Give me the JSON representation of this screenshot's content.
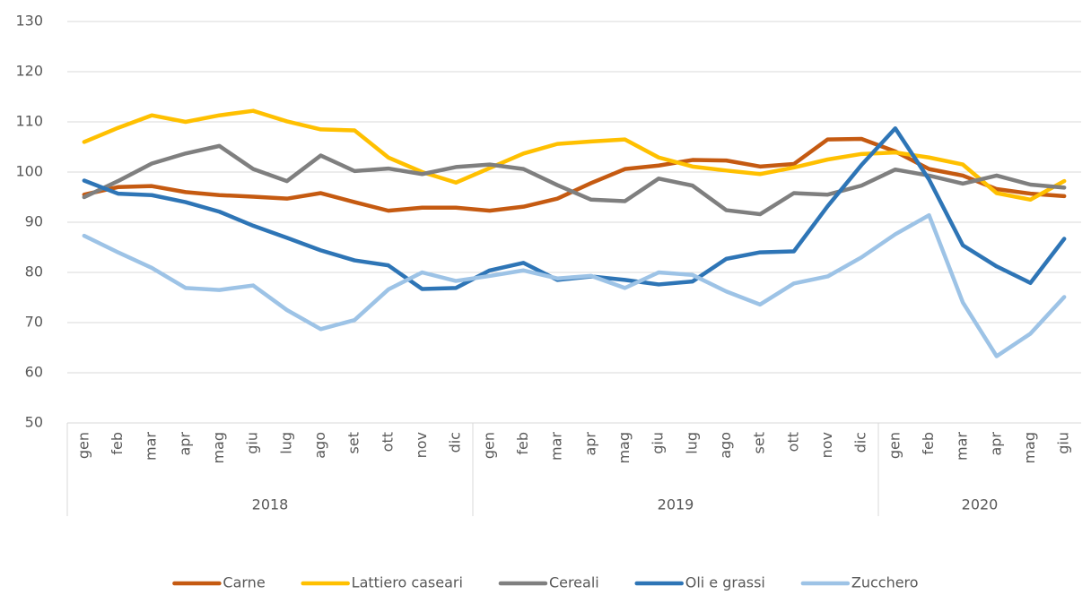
{
  "chart_data": {
    "type": "line",
    "categories": [
      "gen",
      "feb",
      "mar",
      "apr",
      "mag",
      "giu",
      "lug",
      "ago",
      "set",
      "ott",
      "nov",
      "dic",
      "gen",
      "feb",
      "mar",
      "apr",
      "mag",
      "giu",
      "lug",
      "ago",
      "set",
      "ott",
      "nov",
      "dic",
      "gen",
      "feb",
      "mar",
      "apr",
      "mag",
      "giu"
    ],
    "groups": [
      "2018",
      "2019",
      "2020"
    ],
    "group_sizes": [
      12,
      12,
      6
    ],
    "ylim": [
      50,
      130
    ],
    "yticks": [
      50,
      60,
      70,
      80,
      90,
      100,
      110,
      120,
      130
    ],
    "grid": true,
    "legend": "bottom",
    "series": [
      {
        "name": "Carne",
        "color": "#c55a11",
        "values": [
          95.5,
          97,
          97.2,
          96,
          95.4,
          95.1,
          94.7,
          95.8,
          94,
          92.3,
          92.9,
          92.9,
          92.3,
          93.1,
          94.7,
          97.8,
          100.6,
          101.3,
          102.4,
          102.3,
          101.1,
          101.6,
          106.5,
          106.6,
          104.1,
          100.6,
          99.3,
          96.6,
          95.7,
          95.2
        ]
      },
      {
        "name": "Lattiero caseari",
        "color": "#ffc000",
        "values": [
          106,
          108.8,
          111.3,
          110,
          111.3,
          112.2,
          110.1,
          108.5,
          108.3,
          102.9,
          100,
          97.9,
          100.8,
          103.7,
          105.6,
          106.1,
          106.5,
          102.9,
          101.1,
          100.3,
          99.6,
          100.9,
          102.5,
          103.6,
          103.9,
          102.9,
          101.5,
          95.8,
          94.5,
          98.2
        ]
      },
      {
        "name": "Cereali",
        "color": "#7f7f7f",
        "values": [
          95,
          98.2,
          101.7,
          103.7,
          105.2,
          100.6,
          98.2,
          103.3,
          100.2,
          100.7,
          99.6,
          101,
          101.5,
          100.6,
          97.4,
          94.5,
          94.2,
          98.7,
          97.3,
          92.4,
          91.6,
          95.8,
          95.5,
          97.3,
          100.5,
          99.3,
          97.7,
          99.3,
          97.5,
          96.9
        ]
      },
      {
        "name": "Oli e grassi",
        "color": "#2e75b6",
        "values": [
          98.3,
          95.7,
          95.4,
          94,
          92.1,
          89.3,
          86.9,
          84.4,
          82.4,
          81.4,
          76.7,
          76.9,
          80.4,
          81.9,
          78.5,
          79.2,
          78.5,
          77.6,
          78.2,
          82.7,
          84,
          84.2,
          93.2,
          101.4,
          108.7,
          98.5,
          85.4,
          81.2,
          77.9,
          86.7
        ]
      },
      {
        "name": "Zucchero",
        "color": "#9dc3e6",
        "values": [
          87.3,
          84,
          80.9,
          76.9,
          76.5,
          77.4,
          72.5,
          68.7,
          70.5,
          76.6,
          80,
          78.3,
          79.3,
          80.4,
          78.8,
          79.3,
          76.9,
          80,
          79.5,
          76.2,
          73.6,
          77.8,
          79.2,
          83,
          87.6,
          91.4,
          74,
          63.3,
          67.8,
          75.1
        ]
      }
    ]
  }
}
